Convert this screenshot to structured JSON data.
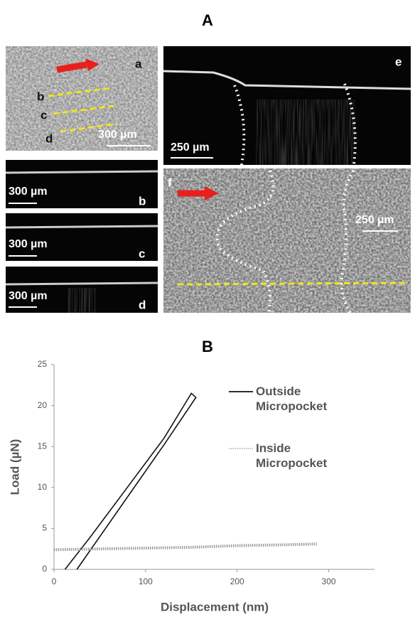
{
  "panel_a": {
    "label": "A",
    "a": {
      "letter": "a",
      "line_labels": [
        "b",
        "c",
        "d"
      ],
      "scale_bar": "300 µm"
    },
    "b": {
      "letter": "b",
      "scale_bar": "300 µm"
    },
    "c": {
      "letter": "c",
      "scale_bar": "300 µm"
    },
    "d": {
      "letter": "d",
      "scale_bar": "300 µm"
    },
    "e": {
      "letter": "e",
      "scale_bar": "250 µm"
    },
    "f": {
      "letter": "f",
      "scale_bar": "250 µm"
    }
  },
  "chart_data": {
    "type": "line",
    "title": "B",
    "x_label": "Displacement (nm)",
    "y_label": "Load (µN)",
    "xlim": [
      0,
      350
    ],
    "xticks": [
      0,
      100,
      200,
      300
    ],
    "ylim": [
      0,
      25
    ],
    "yticks": [
      0,
      5,
      10,
      15,
      20,
      25
    ],
    "legend": "right",
    "series": [
      {
        "name": "Outside Micropocket",
        "color": "#111111",
        "line_style": "solid",
        "x": [
          12,
          40,
          80,
          120,
          150,
          155,
          120,
          80,
          50,
          25
        ],
        "values": [
          0,
          4,
          10,
          16,
          21.5,
          21,
          15.2,
          8.8,
          4,
          0
        ]
      },
      {
        "name": "Inside Micropocket",
        "color": "#9a9a9a",
        "line_style": "dotted",
        "x": [
          0,
          50,
          100,
          150,
          200,
          250,
          287
        ],
        "values": [
          2.4,
          2.5,
          2.6,
          2.7,
          2.9,
          3.0,
          3.1
        ]
      }
    ]
  }
}
